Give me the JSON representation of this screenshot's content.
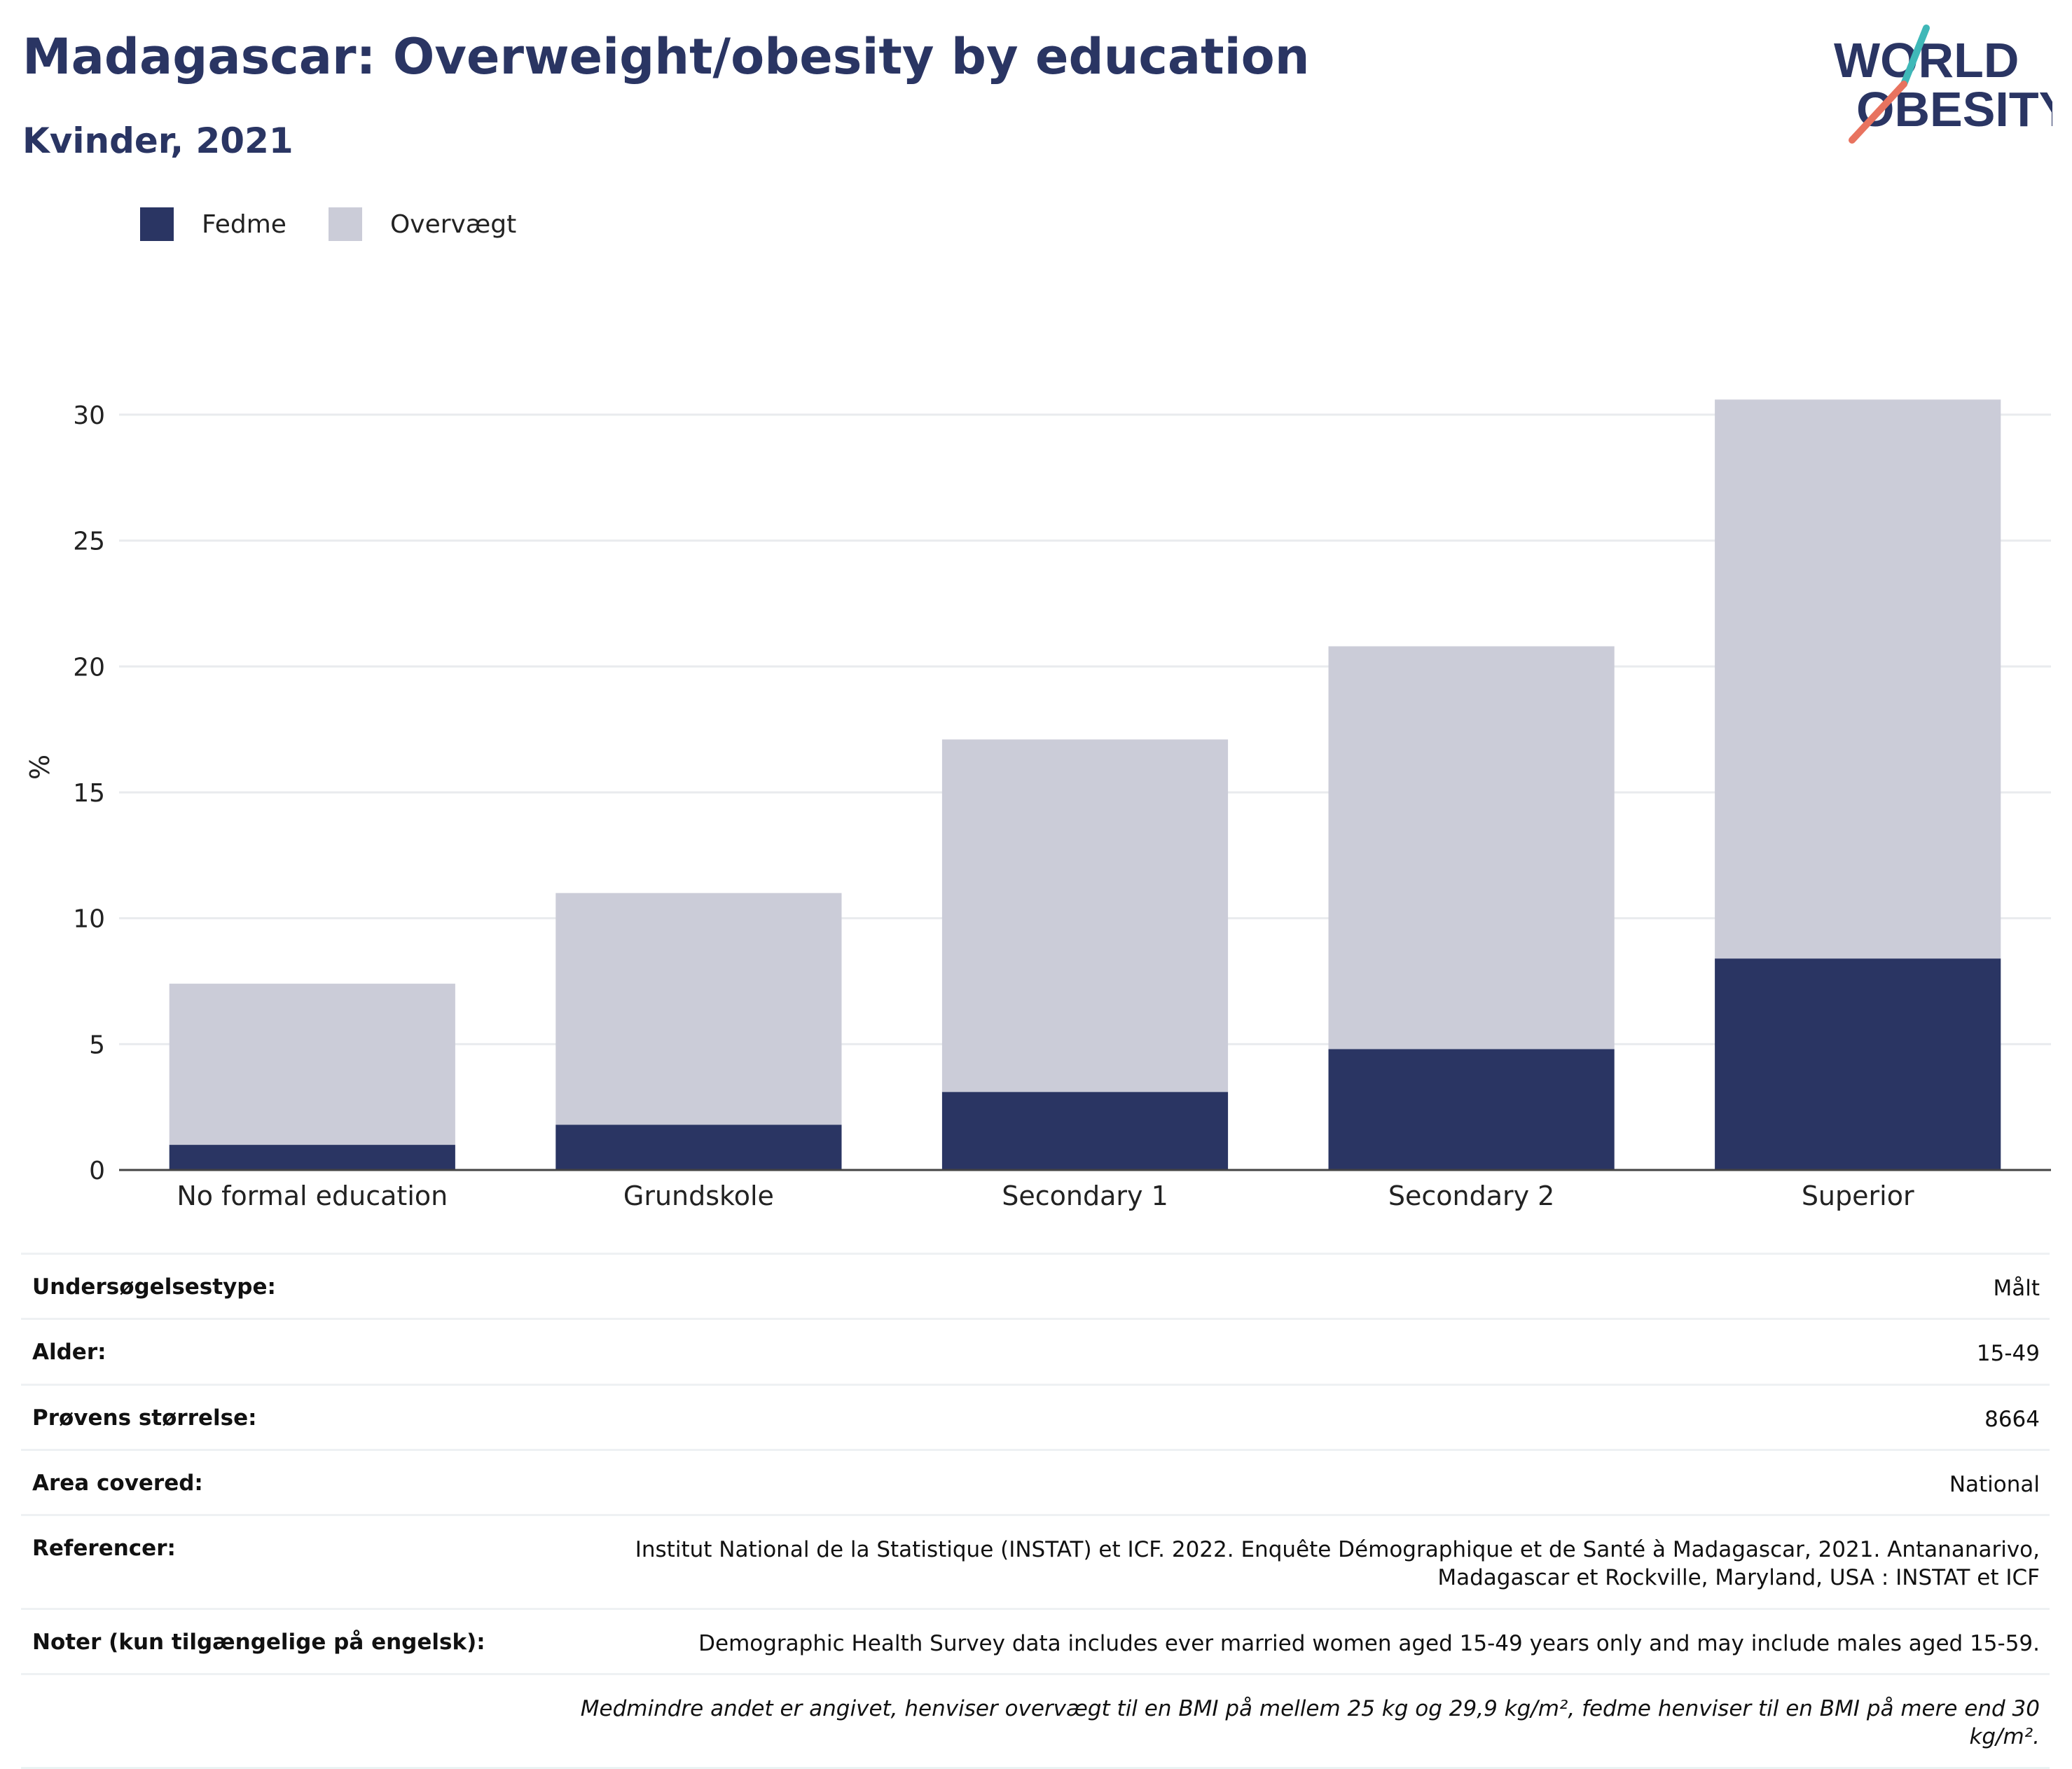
{
  "title": "Madagascar: Overweight/obesity by education",
  "subtitle": "Kvinder, 2021",
  "logo": {
    "line1": "WORLD",
    "line2": "OBESITY"
  },
  "colors": {
    "fedme": "#2a3563",
    "overvaegt": "#cbccd8",
    "title": "#2a3563",
    "logo_teal": "#3fb8b8",
    "logo_coral": "#e8735f"
  },
  "chart_data": {
    "type": "bar",
    "stacked": true,
    "categories": [
      "No formal education",
      "Grundskole",
      "Secondary 1",
      "Secondary 2",
      "Superior"
    ],
    "series": [
      {
        "name": "Fedme",
        "values": [
          1.0,
          1.8,
          3.1,
          4.8,
          8.4
        ]
      },
      {
        "name": "Overvægt",
        "values": [
          6.4,
          9.2,
          14.0,
          16.0,
          22.2
        ]
      }
    ],
    "ylabel": "%",
    "ylim": [
      0,
      32
    ],
    "yticks": [
      0,
      5,
      10,
      15,
      20,
      25,
      30
    ],
    "grid": true,
    "legend_position": "top-left"
  },
  "info": [
    {
      "key": "Undersøgelsestype:",
      "value": "Målt"
    },
    {
      "key": "Alder:",
      "value": "15-49"
    },
    {
      "key": "Prøvens størrelse:",
      "value": "8664"
    },
    {
      "key": "Area covered:",
      "value": "National"
    },
    {
      "key": "Referencer:",
      "value": "Institut National de la Statistique (INSTAT) et ICF. 2022. Enquête Démographique et de Santé à Madagascar, 2021. Antananarivo, Madagascar et Rockville, Maryland, USA : INSTAT et ICF"
    },
    {
      "key": "Noter (kun tilgængelige på engelsk):",
      "value": "Demographic Health Survey data includes ever married women aged 15-49 years only and may include males aged 15-59."
    }
  ],
  "footnote": "Medmindre andet er angivet, henviser overvægt til en BMI på mellem 25 kg og 29,9 kg/m², fedme henviser til en BMI på mere end 30 kg/m²."
}
